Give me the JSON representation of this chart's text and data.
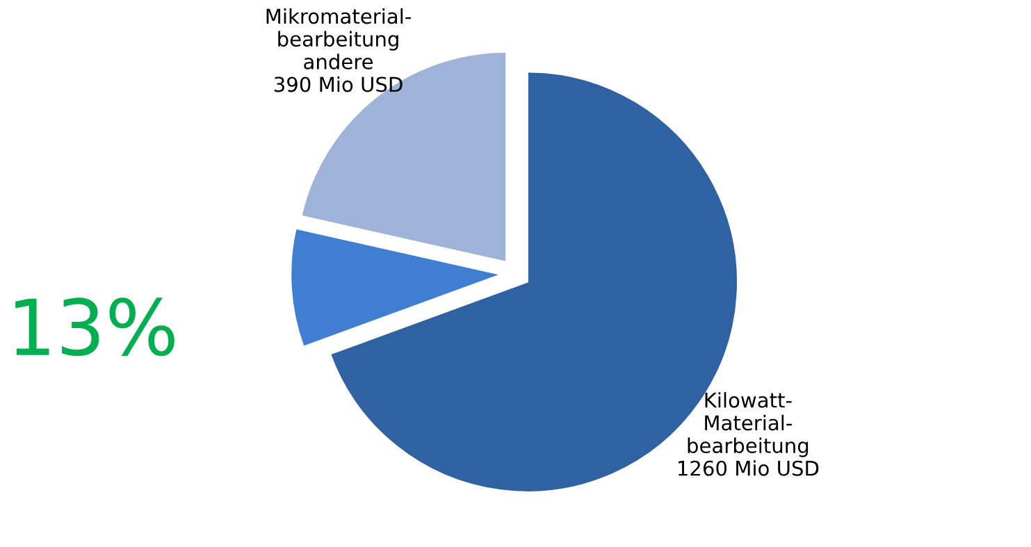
{
  "chart_data": {
    "type": "pie",
    "categories": [
      "Kilowatt-\nMaterial-\nbearbeitung\n1260 Mio USD",
      null,
      "Mikromaterial-\nbearbeitung\nandere\n390 Mio USD"
    ],
    "values": [
      1260,
      165,
      390
    ],
    "colors": [
      "#2f62a3",
      "#3f7ed0",
      "#9fb3d8"
    ],
    "annotations": [
      "13%"
    ],
    "legend": false
  }
}
